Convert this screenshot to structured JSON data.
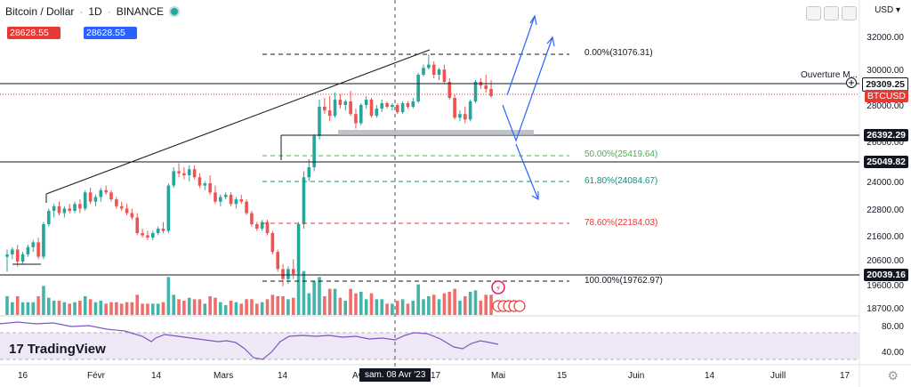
{
  "header": {
    "title": "Bitcoin / Dollar",
    "interval": "1D",
    "exchange": "BINANCE",
    "sell_price": "28628.55",
    "buy_price": "28628.55"
  },
  "currency": "USD",
  "overlay_label": "Ouverture M...",
  "price_axis": [
    "32000.00",
    "30000.00",
    "28000.00",
    "26000.00",
    "24000.00",
    "22800.00",
    "21600.00",
    "20600.00",
    "19600.00",
    "18700.00"
  ],
  "price_tags": {
    "crosshair": "29309.25",
    "symbol": "BTCUSD",
    "level_1": "26392.29",
    "level_2": "25049.82",
    "level_3": "20039.16"
  },
  "fib_levels": [
    {
      "label": "0.00%(31076.31)",
      "color": "#131722"
    },
    {
      "label": "50.00%(25419.64)",
      "color": "#4caf50"
    },
    {
      "label": "61.80%(24084.67)",
      "color": "#009688"
    },
    {
      "label": "78.60%(22184.03)",
      "color": "#e53935"
    },
    {
      "label": "100.00%(19762.97)",
      "color": "#131722"
    }
  ],
  "time_axis": [
    "16",
    "Févr",
    "14",
    "Mars",
    "14",
    "Avr",
    "17",
    "Mai",
    "15",
    "Juin",
    "14",
    "Juill",
    "17"
  ],
  "crosshair_date": "sam. 08 Avr '23",
  "rsi_axis": [
    "80.00",
    "40.00"
  ],
  "brand": "TradingView",
  "colors": {
    "up": "#26a69a",
    "down": "#ef5350",
    "arrow": "#2962ff"
  },
  "chart_data": {
    "type": "candlestick",
    "symbol": "BTCUSD",
    "interval": "1D",
    "ohlc_daily_approx": [
      [
        20800,
        21100,
        20200,
        20900
      ],
      [
        20900,
        21200,
        20700,
        21100
      ],
      [
        21100,
        21300,
        20400,
        20600
      ],
      [
        20600,
        21000,
        20500,
        20900
      ],
      [
        20900,
        21300,
        20800,
        21200
      ],
      [
        21200,
        21500,
        21000,
        21400
      ],
      [
        21400,
        21600,
        20700,
        20800
      ],
      [
        20800,
        22300,
        20700,
        22200
      ],
      [
        22200,
        22900,
        22100,
        22800
      ],
      [
        22800,
        23100,
        22500,
        23000
      ],
      [
        23000,
        23200,
        22600,
        22700
      ],
      [
        22700,
        23000,
        22500,
        22900
      ],
      [
        22900,
        23100,
        22700,
        22800
      ],
      [
        22800,
        23200,
        22700,
        23100
      ],
      [
        23100,
        23300,
        22700,
        22900
      ],
      [
        22900,
        23700,
        22800,
        23600
      ],
      [
        23600,
        23800,
        23100,
        23200
      ],
      [
        23200,
        23500,
        23000,
        23400
      ],
      [
        23400,
        23800,
        23200,
        23700
      ],
      [
        23700,
        23900,
        23500,
        23600
      ],
      [
        23600,
        23700,
        23200,
        23300
      ],
      [
        23300,
        23400,
        22900,
        23000
      ],
      [
        23000,
        23200,
        22800,
        22900
      ],
      [
        22900,
        23100,
        22600,
        22700
      ],
      [
        22700,
        22900,
        22400,
        22500
      ],
      [
        22500,
        22700,
        21700,
        21800
      ],
      [
        21800,
        22000,
        21600,
        21700
      ],
      [
        21700,
        21900,
        21500,
        21600
      ],
      [
        21600,
        21900,
        21500,
        21800
      ],
      [
        21800,
        22100,
        21700,
        22000
      ],
      [
        22000,
        22300,
        21800,
        21900
      ],
      [
        21900,
        24000,
        21800,
        23900
      ],
      [
        23900,
        24800,
        23800,
        24600
      ],
      [
        24600,
        25000,
        24300,
        24500
      ],
      [
        24500,
        24800,
        24200,
        24400
      ],
      [
        24400,
        24900,
        24100,
        24700
      ],
      [
        24700,
        24900,
        24200,
        24300
      ],
      [
        24300,
        24500,
        23800,
        23900
      ],
      [
        23900,
        24100,
        23700,
        24000
      ],
      [
        24000,
        24400,
        23500,
        23600
      ],
      [
        23600,
        23900,
        23100,
        23200
      ],
      [
        23200,
        23500,
        23000,
        23400
      ],
      [
        23400,
        23600,
        23300,
        23500
      ],
      [
        23500,
        23600,
        23000,
        23100
      ],
      [
        23100,
        23400,
        22900,
        23300
      ],
      [
        23300,
        23500,
        23100,
        23200
      ],
      [
        23200,
        23300,
        22600,
        22700
      ],
      [
        22700,
        22800,
        22100,
        22200
      ],
      [
        22200,
        22300,
        21900,
        22000
      ],
      [
        22000,
        22400,
        21900,
        22300
      ],
      [
        22300,
        22400,
        21700,
        21800
      ],
      [
        21800,
        21900,
        20900,
        21000
      ],
      [
        21000,
        21100,
        20200,
        20300
      ],
      [
        20300,
        20500,
        19600,
        19900
      ],
      [
        19900,
        20400,
        19700,
        20300
      ],
      [
        20300,
        20700,
        19900,
        20100
      ],
      [
        20100,
        22300,
        20000,
        22200
      ],
      [
        22200,
        24600,
        22000,
        24300
      ],
      [
        24300,
        25200,
        24100,
        24800
      ],
      [
        24800,
        26500,
        24600,
        26400
      ],
      [
        26400,
        28400,
        26200,
        28000
      ],
      [
        28000,
        28500,
        27600,
        27800
      ],
      [
        27800,
        28600,
        27200,
        27500
      ],
      [
        27500,
        28800,
        27400,
        28400
      ],
      [
        28400,
        28700,
        27900,
        28100
      ],
      [
        28100,
        28400,
        27800,
        28300
      ],
      [
        28300,
        28900,
        27500,
        27600
      ],
      [
        27600,
        27900,
        26800,
        27100
      ],
      [
        27100,
        28200,
        27000,
        28100
      ],
      [
        28100,
        28600,
        27900,
        28400
      ],
      [
        28400,
        28500,
        27400,
        27500
      ],
      [
        27500,
        28100,
        27400,
        27900
      ],
      [
        27900,
        28400,
        27700,
        28200
      ],
      [
        28200,
        28300,
        27900,
        28000
      ],
      [
        28000,
        28200,
        27800,
        28100
      ],
      [
        28100,
        28200,
        27600,
        27700
      ],
      [
        27700,
        28300,
        27600,
        28200
      ],
      [
        28200,
        28300,
        27900,
        28000
      ],
      [
        28000,
        28500,
        27900,
        28300
      ],
      [
        28300,
        29900,
        28200,
        29800
      ],
      [
        29800,
        30400,
        29700,
        30200
      ],
      [
        30200,
        31000,
        30100,
        30400
      ],
      [
        30400,
        30600,
        29600,
        29800
      ],
      [
        29800,
        30200,
        29500,
        30100
      ],
      [
        30100,
        30400,
        29300,
        29400
      ],
      [
        29400,
        29600,
        28400,
        28500
      ],
      [
        28500,
        28700,
        27300,
        27400
      ],
      [
        27400,
        27800,
        27200,
        27600
      ],
      [
        27600,
        28000,
        27100,
        27300
      ],
      [
        27300,
        28400,
        27200,
        28300
      ],
      [
        28300,
        29500,
        28200,
        29400
      ],
      [
        29400,
        29600,
        29000,
        29200
      ],
      [
        29200,
        29800,
        28800,
        29000
      ],
      [
        29000,
        29500,
        28500,
        28600
      ]
    ],
    "fibonacci": [
      {
        "level": "0.00%",
        "price": 31076.31
      },
      {
        "level": "50.00%",
        "price": 25419.64
      },
      {
        "level": "61.80%",
        "price": 24084.67
      },
      {
        "level": "78.60%",
        "price": 22184.03
      },
      {
        "level": "100.00%",
        "price": 19762.97
      }
    ],
    "horizontal_levels": [
      29309.25,
      26392.29,
      25049.82,
      20039.16
    ],
    "last_price": 28628.55,
    "rsi_levels": [
      80,
      40
    ],
    "ylim": [
      18700,
      32800
    ]
  }
}
